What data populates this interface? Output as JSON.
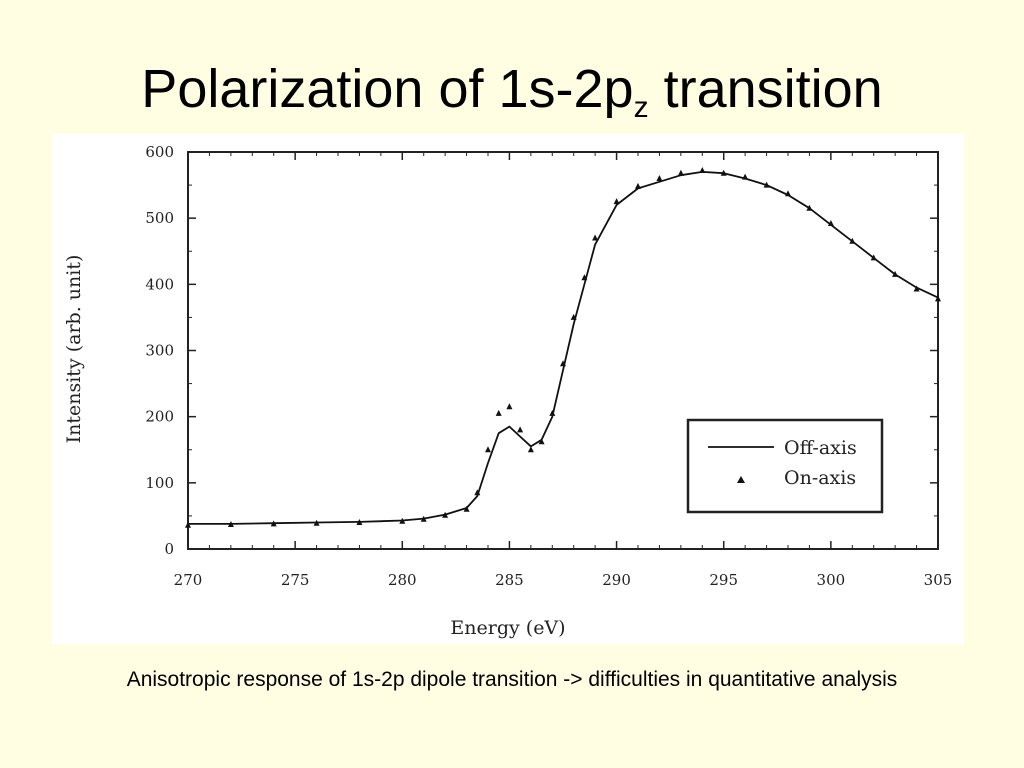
{
  "slide": {
    "title_main": "Polarization of 1s-2p",
    "title_sub": "z",
    "title_rest": " transition",
    "caption": "Anisotropic response of 1s-2p dipole transition -> difficulties in quantitative analysis",
    "background": "#fffee3"
  },
  "chart_data": {
    "type": "line",
    "xlabel": "Energy (eV)",
    "ylabel": "Intensity (arb. unit)",
    "xlim": [
      270,
      305
    ],
    "ylim": [
      0,
      600
    ],
    "xticks": [
      "270",
      "275",
      "280",
      "285",
      "290",
      "295",
      "300",
      "305"
    ],
    "yticks": [
      "0",
      "100",
      "200",
      "300",
      "400",
      "500",
      "600"
    ],
    "grid": false,
    "legend_position": "lower-right",
    "series": [
      {
        "name": "Off-axis",
        "style": "line",
        "color": "#111111",
        "x": [
          270,
          272,
          274,
          276,
          278,
          280,
          281,
          282,
          283,
          283.5,
          284,
          284.5,
          285,
          285.5,
          286,
          286.5,
          287,
          287.5,
          288,
          288.5,
          289,
          290,
          291,
          292,
          293,
          294,
          295,
          296,
          297,
          298,
          299,
          300,
          301,
          302,
          303,
          304,
          305
        ],
        "y": [
          38,
          38,
          39,
          40,
          41,
          43,
          46,
          52,
          62,
          80,
          130,
          175,
          185,
          170,
          155,
          165,
          200,
          270,
          340,
          400,
          460,
          520,
          545,
          555,
          565,
          570,
          568,
          560,
          550,
          535,
          515,
          490,
          465,
          440,
          415,
          395,
          380
        ]
      },
      {
        "name": "On-axis",
        "style": "markers",
        "color": "#111111",
        "x": [
          270,
          272,
          274,
          276,
          278,
          280,
          281,
          282,
          283,
          283.5,
          284,
          284.5,
          285,
          285.5,
          286,
          286.5,
          287,
          287.5,
          288,
          288.5,
          289,
          290,
          291,
          292,
          293,
          294,
          295,
          296,
          297,
          298,
          299,
          300,
          301,
          302,
          303,
          304,
          305
        ],
        "y": [
          36,
          37,
          38,
          39,
          40,
          42,
          45,
          51,
          60,
          85,
          150,
          205,
          215,
          180,
          150,
          162,
          205,
          280,
          350,
          410,
          470,
          525,
          548,
          560,
          568,
          572,
          568,
          562,
          550,
          537,
          515,
          492,
          465,
          440,
          415,
          393,
          378
        ]
      }
    ]
  }
}
